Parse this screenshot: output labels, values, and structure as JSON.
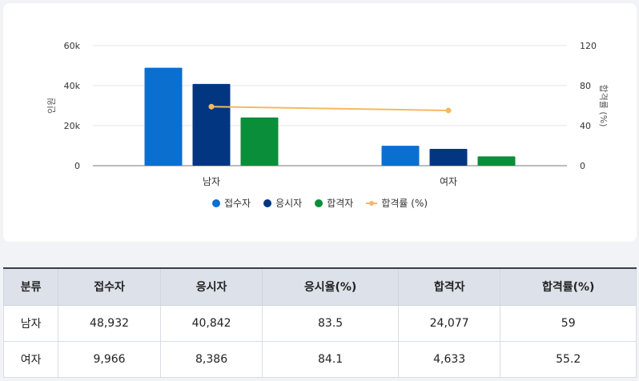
{
  "chart_data": {
    "type": "bar",
    "categories": [
      "남자",
      "여자"
    ],
    "series": [
      {
        "name": "접수자",
        "kind": "bar",
        "axis": "left",
        "color": "#0b6fd0",
        "values": [
          48932,
          9966
        ]
      },
      {
        "name": "응시자",
        "kind": "bar",
        "axis": "left",
        "color": "#023681",
        "values": [
          40842,
          8386
        ]
      },
      {
        "name": "합격자",
        "kind": "bar",
        "axis": "left",
        "color": "#0a8e3a",
        "values": [
          24077,
          4633
        ]
      },
      {
        "name": "합격률 (%)",
        "kind": "line",
        "axis": "right",
        "color": "#f5b961",
        "values": [
          59,
          55.2
        ]
      }
    ],
    "ylabel": "인원",
    "y2label": "합격률 (%)",
    "ylim": [
      0,
      60000
    ],
    "y2lim": [
      0,
      120
    ],
    "yticks": [
      "0",
      "20k",
      "40k",
      "60k"
    ],
    "y2ticks": [
      "0",
      "40",
      "80",
      "120"
    ],
    "legend_position": "bottom",
    "grid": true
  },
  "table": {
    "headers": [
      "분류",
      "접수자",
      "응시자",
      "응시율(%)",
      "합격자",
      "합격률(%)"
    ],
    "rows": [
      [
        "남자",
        "48,932",
        "40,842",
        "83.5",
        "24,077",
        "59"
      ],
      [
        "여자",
        "9,966",
        "8,386",
        "84.1",
        "4,633",
        "55.2"
      ]
    ]
  }
}
